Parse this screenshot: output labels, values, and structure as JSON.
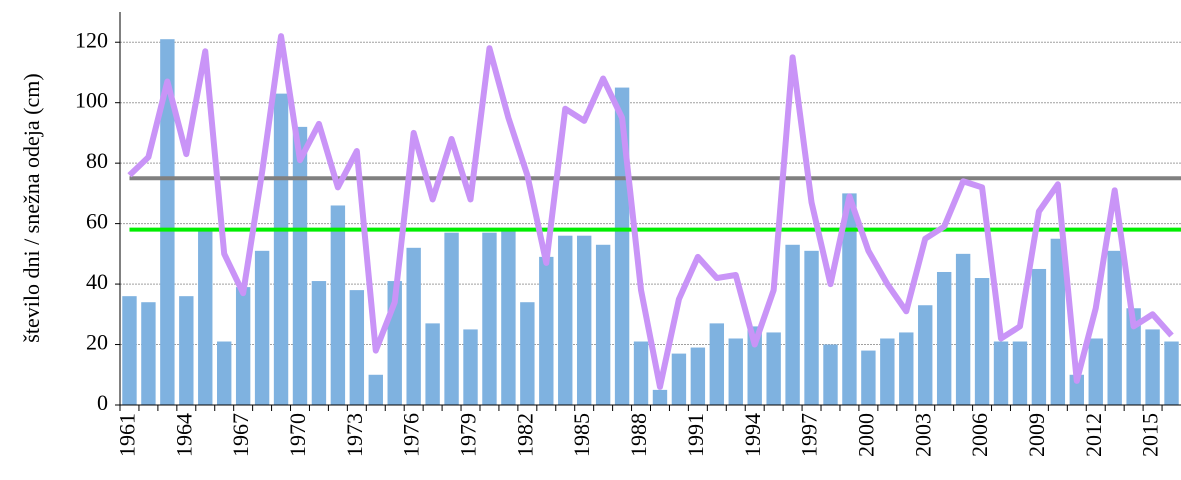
{
  "chart_data": {
    "type": "bar-line",
    "y_label": "število dni / snežna odeja (cm)",
    "categories": [
      "1961",
      null,
      null,
      "1964",
      null,
      null,
      "1967",
      null,
      null,
      "1970",
      null,
      null,
      "1973",
      null,
      null,
      "1976",
      null,
      null,
      "1979",
      null,
      null,
      "1982",
      null,
      null,
      "1985",
      null,
      null,
      "1988",
      null,
      null,
      "1991",
      null,
      null,
      "1994",
      null,
      null,
      "1997",
      null,
      null,
      "2000",
      null,
      null,
      "2003",
      null,
      null,
      "2006",
      null,
      null,
      "2009",
      null,
      null,
      "2012",
      null,
      null,
      "2015",
      null
    ],
    "series": [
      {
        "type": "bar",
        "color": "#7fb2e0",
        "values": [
          36,
          34,
          121,
          36,
          58,
          21,
          39,
          51,
          103,
          92,
          41,
          66,
          38,
          10,
          41,
          52,
          27,
          57,
          25,
          57,
          58,
          34,
          49,
          56,
          56,
          53,
          105,
          21,
          5,
          17,
          19,
          27,
          22,
          26,
          24,
          53,
          51,
          20,
          70,
          18,
          22,
          24,
          33,
          44,
          50,
          42,
          21,
          21,
          45,
          55,
          10,
          22,
          51,
          32,
          25,
          21
        ]
      },
      {
        "type": "line",
        "color": "#c994f7",
        "values": [
          76,
          82,
          107,
          83,
          117,
          50,
          37,
          77,
          122,
          81,
          93,
          72,
          84,
          18,
          34,
          90,
          68,
          88,
          68,
          118,
          95,
          76,
          47,
          98,
          94,
          108,
          95,
          38,
          6,
          35,
          49,
          42,
          43,
          20,
          38,
          115,
          67,
          40,
          69,
          51,
          40,
          31,
          55,
          59,
          74,
          72,
          22,
          26,
          64,
          73,
          8,
          32,
          71,
          26,
          30,
          23
        ]
      }
    ],
    "reference_lines": [
      {
        "value": 75,
        "color": "#808080"
      },
      {
        "value": 58,
        "color": "#00ee00"
      }
    ],
    "ylim": [
      0,
      130
    ],
    "yticks": [
      0,
      20,
      40,
      60,
      80,
      100,
      120
    ],
    "grid": true
  }
}
